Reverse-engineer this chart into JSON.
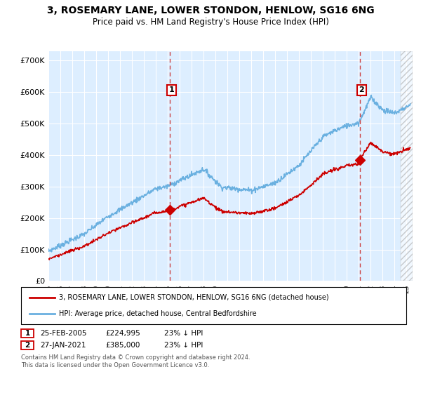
{
  "title": "3, ROSEMARY LANE, LOWER STONDON, HENLOW, SG16 6NG",
  "subtitle": "Price paid vs. HM Land Registry's House Price Index (HPI)",
  "title_fontsize": 10,
  "subtitle_fontsize": 8.5,
  "ylabel_ticks": [
    "£0",
    "£100K",
    "£200K",
    "£300K",
    "£400K",
    "£500K",
    "£600K",
    "£700K"
  ],
  "ytick_values": [
    0,
    100000,
    200000,
    300000,
    400000,
    500000,
    600000,
    700000
  ],
  "ylim": [
    0,
    730000
  ],
  "xlim_start": 1995.0,
  "xlim_end": 2025.5,
  "background_color": "#ffffff",
  "plot_bg_color": "#ddeeff",
  "grid_color": "#ffffff",
  "hpi_color": "#6ab0e0",
  "price_color": "#cc0000",
  "dashed_line_color": "#cc4444",
  "sale1_x": 2005.15,
  "sale1_y": 224995,
  "sale2_x": 2021.08,
  "sale2_y": 385000,
  "legend_label_price": "3, ROSEMARY LANE, LOWER STONDON, HENLOW, SG16 6NG (detached house)",
  "legend_label_hpi": "HPI: Average price, detached house, Central Bedfordshire",
  "footnote": "Contains HM Land Registry data © Crown copyright and database right 2024.\nThis data is licensed under the Open Government Licence v3.0.",
  "table_rows": [
    {
      "num": "1",
      "date": "25-FEB-2005",
      "price": "£224,995",
      "note": "23% ↓ HPI"
    },
    {
      "num": "2",
      "date": "27-JAN-2021",
      "price": "£385,000",
      "note": "23% ↓ HPI"
    }
  ]
}
